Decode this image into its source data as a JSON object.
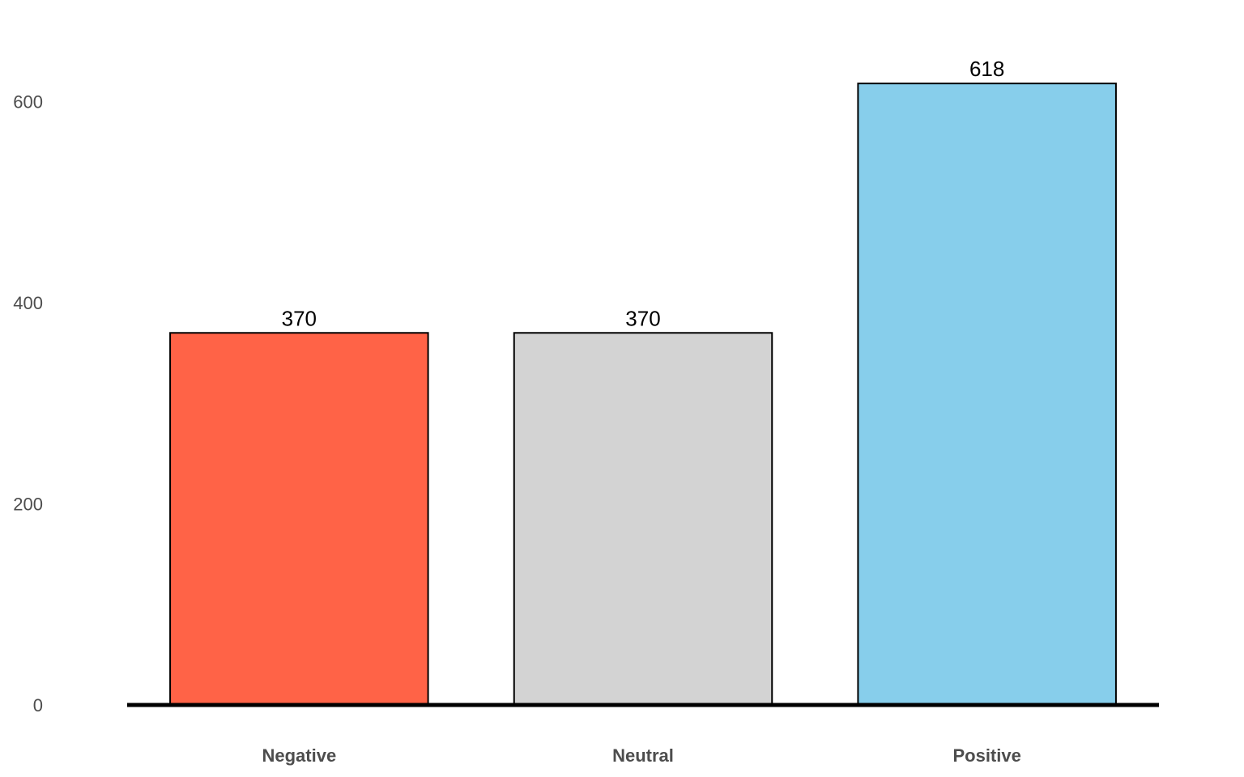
{
  "chart_data": {
    "type": "bar",
    "categories": [
      "Negative",
      "Neutral",
      "Positive"
    ],
    "values": [
      370,
      370,
      618
    ],
    "data_labels": [
      "370",
      "370",
      "618"
    ],
    "colors": [
      "#ff6347",
      "#d3d3d3",
      "#87ceeb"
    ],
    "bar_outline_color": "#000000",
    "title": "",
    "xlabel": "",
    "ylabel": "",
    "ylim": [
      0,
      650
    ],
    "yticks": [
      0,
      200,
      400,
      600
    ],
    "ytick_labels": [
      "0",
      "200",
      "400",
      "600"
    ],
    "grid": false,
    "legend": "none"
  }
}
